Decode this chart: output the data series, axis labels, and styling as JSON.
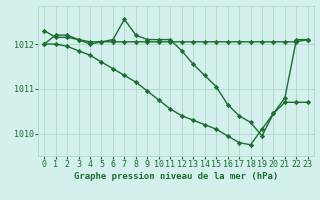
{
  "background_color": "#d4f0ec",
  "grid_color": "#b0d8cc",
  "line_color": "#1a6e2e",
  "series": [
    {
      "x": [
        0,
        1,
        2,
        3,
        4,
        5,
        6,
        7,
        8,
        9,
        10,
        11,
        12,
        13,
        14,
        15,
        16,
        17,
        18,
        19,
        20,
        21,
        22,
        23
      ],
      "y": [
        1012.3,
        1012.15,
        1012.15,
        1012.1,
        1012.05,
        1012.05,
        1012.05,
        1012.05,
        1012.05,
        1012.05,
        1012.05,
        1012.05,
        1012.05,
        1012.05,
        1012.05,
        1012.05,
        1012.05,
        1012.05,
        1012.05,
        1012.05,
        1012.05,
        1012.05,
        1012.05,
        1012.1
      ]
    },
    {
      "x": [
        0,
        1,
        2,
        3,
        4,
        5,
        6,
        7,
        8,
        9,
        10,
        11,
        12,
        13,
        14,
        15,
        16,
        17,
        18,
        19,
        20,
        21,
        22,
        23
      ],
      "y": [
        1012.0,
        1012.2,
        1012.2,
        1012.1,
        1012.0,
        1012.05,
        1012.1,
        1012.55,
        1012.2,
        1012.1,
        1012.1,
        1012.1,
        1011.85,
        1011.55,
        1011.3,
        1011.05,
        1010.65,
        1010.4,
        1010.25,
        1009.95,
        1010.45,
        1010.8,
        1012.1,
        1012.1
      ]
    },
    {
      "x": [
        0,
        1,
        2,
        3,
        4,
        5,
        6,
        7,
        8,
        9,
        10,
        11,
        12,
        13,
        14,
        15,
        16,
        17,
        18,
        19,
        20,
        21,
        22,
        23
      ],
      "y": [
        1012.0,
        1012.0,
        1011.95,
        1011.85,
        1011.75,
        1011.6,
        1011.45,
        1011.3,
        1011.15,
        1010.95,
        1010.75,
        1010.55,
        1010.4,
        1010.3,
        1010.2,
        1010.1,
        1009.95,
        1009.8,
        1009.75,
        1010.1,
        1010.45,
        1010.7,
        1010.7,
        1010.7
      ]
    }
  ],
  "xlabel": "Graphe pression niveau de la mer (hPa)",
  "xlim": [
    -0.5,
    23.5
  ],
  "ylim": [
    1009.5,
    1012.85
  ],
  "yticks": [
    1010,
    1011,
    1012
  ],
  "xticks": [
    0,
    1,
    2,
    3,
    4,
    5,
    6,
    7,
    8,
    9,
    10,
    11,
    12,
    13,
    14,
    15,
    16,
    17,
    18,
    19,
    20,
    21,
    22,
    23
  ],
  "marker": "D",
  "markersize": 2.2,
  "linewidth": 1.0,
  "tick_fontsize": 6.0,
  "xlabel_fontsize": 6.5
}
